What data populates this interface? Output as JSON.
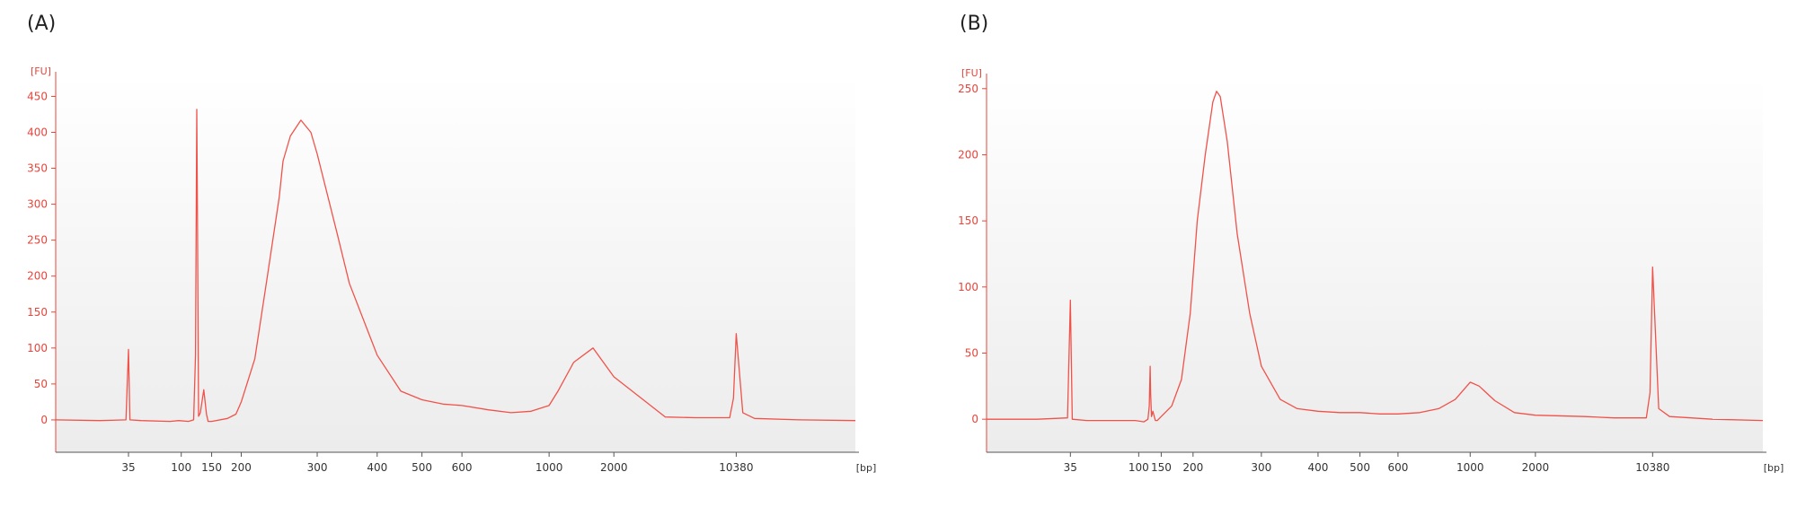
{
  "panels": [
    {
      "label": "(A)"
    },
    {
      "label": "(B)"
    }
  ],
  "colors": {
    "trace": "#f0524a",
    "y_axis": "#e8443a",
    "x_axis": "#555555",
    "plot_bg_top": "#ffffff",
    "plot_bg_bottom": "#ececec"
  },
  "chart_data": [
    {
      "type": "line",
      "panel": "(A)",
      "ylabel": "[FU]",
      "xlabel": "[bp]",
      "ylim": [
        -45,
        478
      ],
      "yticks": [
        0,
        50,
        100,
        150,
        200,
        250,
        300,
        350,
        400,
        450
      ],
      "xscale": "log-like (size ladder)",
      "xticks": [
        {
          "label": "35",
          "bp": 35
        },
        {
          "label": "100",
          "bp": 100
        },
        {
          "label": "150",
          "bp": 150
        },
        {
          "label": "200",
          "bp": 200
        },
        {
          "label": "300",
          "bp": 300
        },
        {
          "label": "400",
          "bp": 400
        },
        {
          "label": "500",
          "bp": 500
        },
        {
          "label": "600",
          "bp": 600
        },
        {
          "label": "1000",
          "bp": 1000
        },
        {
          "label": "2000",
          "bp": 2000
        },
        {
          "label": "10380",
          "bp": 10380
        }
      ],
      "series": [
        {
          "x": [
            15,
            25,
            34,
            35,
            36,
            45,
            80,
            95,
            110,
            118,
            121,
            123,
            124,
            126,
            129,
            135,
            140,
            143,
            147,
            150,
            175,
            190,
            200,
            215,
            230,
            245,
            250,
            260,
            275,
            290,
            300,
            330,
            350,
            400,
            450,
            500,
            550,
            600,
            700,
            800,
            900,
            1000,
            1100,
            1300,
            1600,
            2000,
            4000,
            6000,
            9500,
            10000,
            10380,
            10700,
            11300,
            14000,
            18000
          ],
          "y": [
            0,
            -1,
            0,
            98,
            0,
            -1,
            -2,
            -1,
            -2,
            0,
            90,
            432,
            300,
            5,
            10,
            42,
            8,
            -2,
            -2,
            -2,
            2,
            8,
            25,
            85,
            200,
            310,
            360,
            395,
            417,
            400,
            370,
            260,
            190,
            90,
            40,
            28,
            22,
            20,
            14,
            10,
            12,
            20,
            40,
            80,
            100,
            60,
            4,
            3,
            3,
            30,
            120,
            10,
            2,
            0,
            -1
          ]
        }
      ]
    },
    {
      "type": "line",
      "panel": "(B)",
      "ylabel": "[FU]",
      "xlabel": "[bp]",
      "ylim": [
        -25,
        258
      ],
      "yticks": [
        0,
        50,
        100,
        150,
        200,
        250
      ],
      "xscale": "log-like (size ladder)",
      "xticks": [
        {
          "label": "35",
          "bp": 35
        },
        {
          "label": "100",
          "bp": 100
        },
        {
          "label": "150",
          "bp": 150
        },
        {
          "label": "200",
          "bp": 200
        },
        {
          "label": "300",
          "bp": 300
        },
        {
          "label": "400",
          "bp": 400
        },
        {
          "label": "500",
          "bp": 500
        },
        {
          "label": "600",
          "bp": 600
        },
        {
          "label": "1000",
          "bp": 1000
        },
        {
          "label": "2000",
          "bp": 2000
        },
        {
          "label": "10380",
          "bp": 10380
        }
      ],
      "series": [
        {
          "x": [
            15,
            25,
            34,
            35,
            36,
            45,
            80,
            95,
            110,
            118,
            121,
            123,
            124,
            126,
            129,
            135,
            140,
            150,
            165,
            180,
            195,
            205,
            215,
            225,
            230,
            235,
            245,
            260,
            280,
            300,
            330,
            360,
            400,
            450,
            500,
            550,
            600,
            700,
            800,
            900,
            1000,
            1100,
            1300,
            1600,
            2000,
            4000,
            6000,
            9500,
            10000,
            10380,
            10700,
            11300,
            14000,
            18000
          ],
          "y": [
            0,
            0,
            1,
            90,
            0,
            -1,
            -1,
            -1,
            -2,
            0,
            10,
            40,
            20,
            2,
            6,
            -1,
            -1,
            2,
            10,
            30,
            80,
            150,
            200,
            240,
            248,
            244,
            210,
            140,
            80,
            40,
            15,
            8,
            6,
            5,
            5,
            4,
            4,
            5,
            8,
            15,
            28,
            25,
            14,
            5,
            3,
            2,
            1,
            1,
            20,
            115,
            8,
            2,
            0,
            -1
          ]
        }
      ]
    }
  ]
}
